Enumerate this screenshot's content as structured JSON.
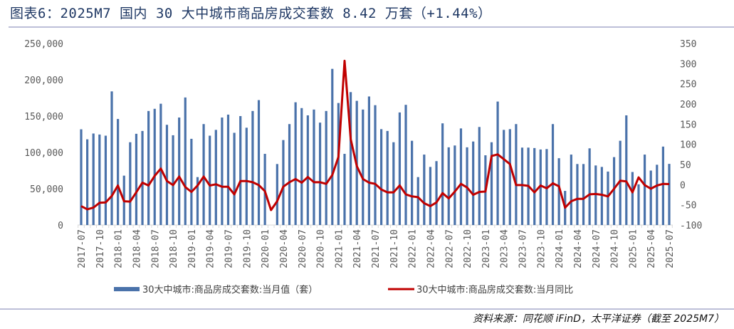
{
  "title": "图表6：2025M7 国内 30 大中城市商品房成交套数 8.42 万套（+1.44%）",
  "source": "资料来源：同花顺 iFinD，太平洋证券（截至 2025M7）",
  "colors": {
    "bars": "#4a72aa",
    "line": "#c00000",
    "title": "#1f3864",
    "rule": "#7b7fb0"
  },
  "chart_data": {
    "type": "bar+line",
    "title": "",
    "x_start": "2017-07",
    "x_end": "2025-07",
    "x_tick_labels": [
      "2017-07",
      "2017-10",
      "2018-01",
      "2018-04",
      "2018-07",
      "2018-10",
      "2019-01",
      "2019-04",
      "2019-07",
      "2019-10",
      "2020-01",
      "2020-04",
      "2020-07",
      "2020-10",
      "2021-01",
      "2021-04",
      "2021-07",
      "2021-10",
      "2022-01",
      "2022-04",
      "2022-07",
      "2022-10",
      "2023-01",
      "2023-04",
      "2023-07",
      "2023-10",
      "2024-01",
      "2024-04",
      "2024-07",
      "2024-10",
      "2025-01",
      "2025-04",
      "2025-07"
    ],
    "left_axis": {
      "range": [
        0,
        250000
      ],
      "ticks": [
        "0",
        "50,000",
        "100,000",
        "150,000",
        "200,000",
        "250,000"
      ]
    },
    "right_axis": {
      "range": [
        -100,
        350
      ],
      "ticks": [
        "-100",
        "-50",
        "0",
        "50",
        "100",
        "150",
        "200",
        "250",
        "300",
        "350"
      ]
    },
    "grid": false,
    "legend_placement": "bottom",
    "series": [
      {
        "name": "30大中城市:商品房成交套数:当月值（套）",
        "type": "bar",
        "axis": "left",
        "values": [
          131800,
          118000,
          126000,
          124600,
          123000,
          184000,
          146000,
          68000,
          114000,
          125600,
          129500,
          157000,
          160000,
          167000,
          138000,
          123600,
          148000,
          175600,
          118700,
          66000,
          139000,
          123000,
          131000,
          148000,
          152000,
          127000,
          150000,
          134000,
          157000,
          172000,
          98000,
          null,
          84000,
          117000,
          139000,
          169000,
          161000,
          151000,
          159000,
          141000,
          157000,
          215000,
          168000,
          98000,
          183000,
          171000,
          159000,
          177000,
          165000,
          132000,
          129500,
          114000,
          155000,
          165500,
          116000,
          66000,
          97000,
          80000,
          88000,
          140000,
          107000,
          109500,
          133000,
          107000,
          115000,
          135000,
          96000,
          114000,
          170000,
          131000,
          132000,
          139000,
          106600,
          106600,
          106000,
          104000,
          104600,
          139000,
          92000,
          47000,
          97000,
          84000,
          84000,
          105600,
          82000,
          80000,
          73600,
          93500,
          116000,
          151000,
          73000,
          56000,
          97000,
          75000,
          83000,
          108000,
          84200
        ]
      },
      {
        "name": "30大中城市:商品房成交套数:当月同比",
        "type": "line",
        "axis": "right",
        "values": [
          -53,
          -61,
          -57,
          -45,
          -44,
          -28,
          -2,
          -41,
          -42,
          -19,
          5,
          -2,
          22,
          40,
          9,
          -1,
          20,
          -6,
          -18,
          -2,
          20,
          -2,
          1,
          -5,
          -5,
          -24,
          9,
          9,
          6,
          -1,
          -16,
          -63,
          -41,
          -5,
          6,
          14,
          5,
          19,
          6,
          6,
          2,
          24,
          69,
          307,
          113,
          46,
          14,
          5,
          2,
          -12,
          -19,
          -19,
          -2,
          -24,
          -29,
          -31,
          -46,
          -53,
          -44,
          -21,
          -34,
          -17,
          2,
          -7,
          -25,
          -18,
          -17,
          71,
          75,
          63,
          51,
          -1,
          -1,
          -3,
          -19,
          -2,
          -9,
          3.5,
          -4,
          -57,
          -41,
          -35,
          -35,
          -24,
          -23,
          -25,
          -29,
          -10,
          10,
          8,
          -19,
          18,
          -1,
          -10,
          -2,
          2,
          1.44
        ]
      }
    ]
  }
}
